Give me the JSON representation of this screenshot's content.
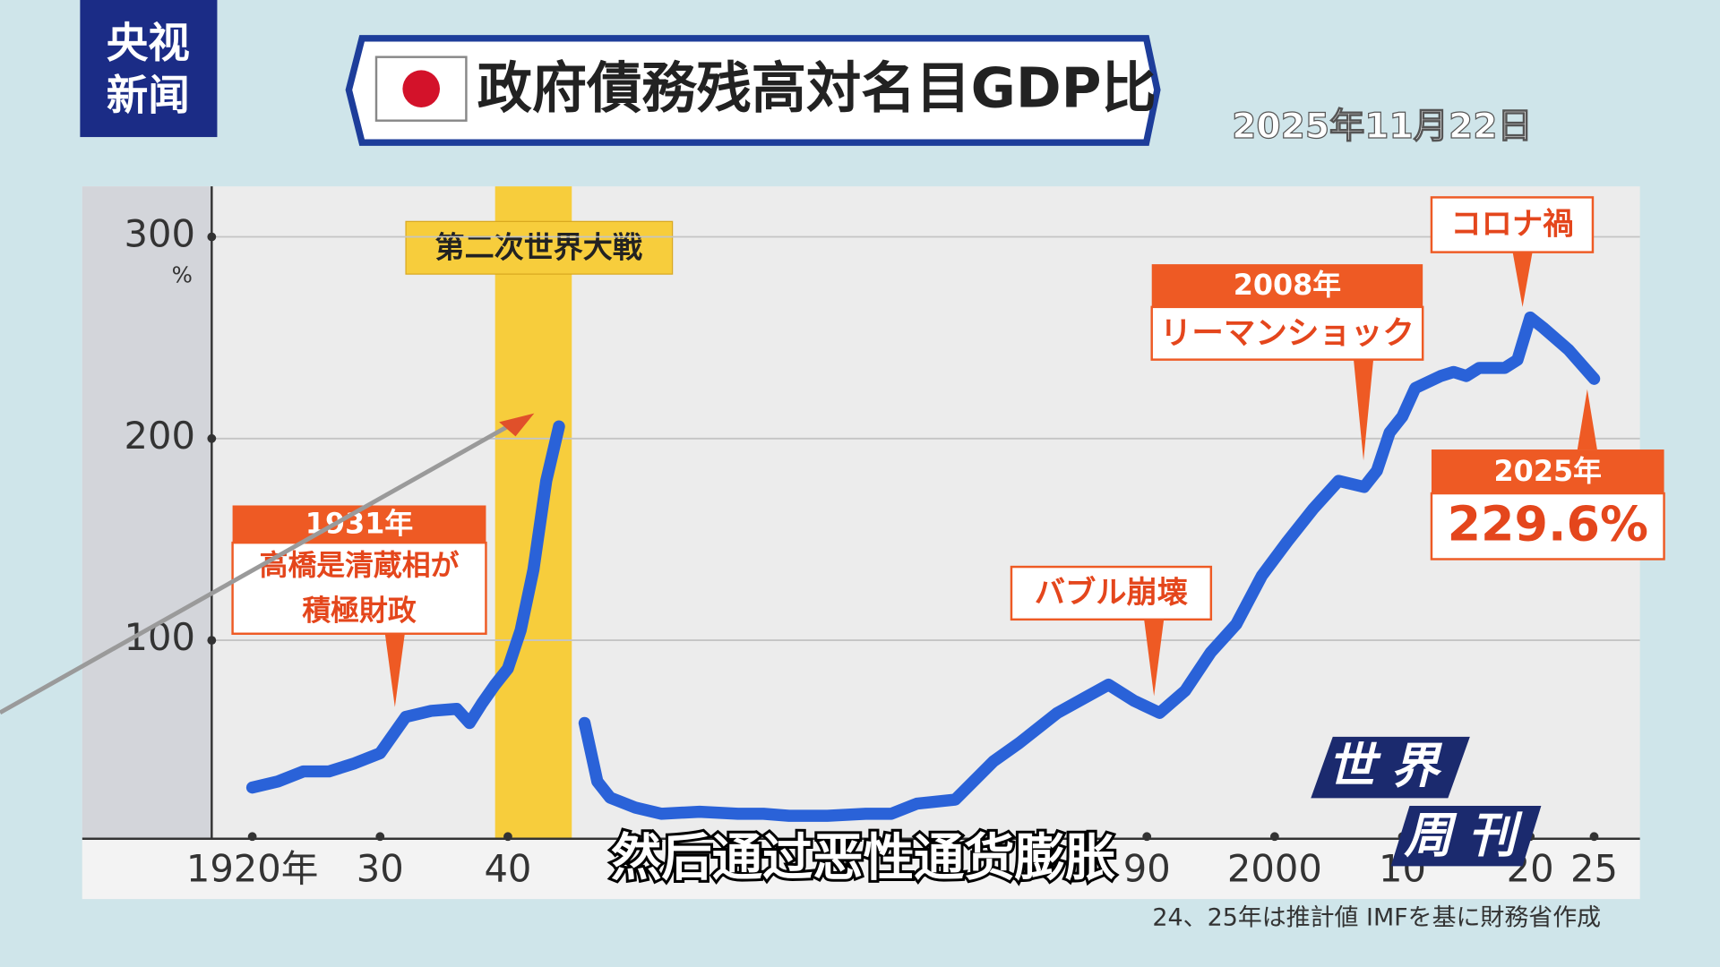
{
  "chart_data": {
    "type": "line",
    "title": "政府債務残高対名目GDP比",
    "date": "2025年11月22日",
    "channel": [
      "央视",
      "新闻"
    ],
    "program": [
      "世界",
      "周刊"
    ],
    "subtitle": "然后通过恶性通货膨胀",
    "y_unit": "%",
    "note": "24、25年は推計値 IMFを基に財務省作成",
    "highlight": {
      "label": "第二次世界大戦",
      "range": [
        1939,
        1945
      ]
    },
    "annotations": [
      {
        "title": "1931年",
        "text": [
          "高橋是清蔵相が",
          "積極財政"
        ]
      },
      {
        "text": [
          "バブル崩壊"
        ]
      },
      {
        "title": "2008年",
        "text": [
          "リーマンショック"
        ]
      },
      {
        "text": [
          "コロナ禍"
        ]
      },
      {
        "title": "2025年",
        "text": [
          "229.6%"
        ]
      }
    ],
    "x": [
      1920,
      1922,
      1924,
      1926,
      1928,
      1930,
      1932,
      1934,
      1936,
      1937,
      1938,
      1939,
      1940,
      1941,
      1942,
      1943,
      1944,
      1945,
      1946,
      1947,
      1948,
      1950,
      1952,
      1955,
      1958,
      1960,
      1962,
      1965,
      1968,
      1970,
      1972,
      1975,
      1978,
      1980,
      1983,
      1985,
      1987,
      1989,
      1991,
      1993,
      1995,
      1997,
      1999,
      2001,
      2003,
      2005,
      2007,
      2008,
      2009,
      2010,
      2011,
      2013,
      2014,
      2015,
      2016,
      2018,
      2019,
      2020,
      2021,
      2023,
      2025
    ],
    "series": [
      {
        "color": "#2a62d8",
        "values": [
          27,
          30,
          35,
          35,
          39,
          44,
          62,
          65,
          66,
          59,
          69,
          78,
          86,
          105,
          135,
          179,
          206,
          null,
          59,
          30,
          22,
          17,
          14,
          15,
          14,
          14,
          13,
          13,
          14,
          14,
          19,
          21,
          40,
          49,
          64,
          71,
          78,
          70,
          64,
          75,
          94,
          108,
          132,
          149,
          165,
          179,
          176,
          184,
          203,
          211,
          225,
          231,
          233,
          231,
          235,
          235,
          239,
          260,
          255,
          244,
          229.6
        ]
      }
    ],
    "xlim": [
      1911,
      2029
    ],
    "ylim": [
      0,
      325
    ],
    "yticks": [
      100,
      200,
      300
    ],
    "xticks": [
      {
        "value": 1920,
        "label": "1920年"
      },
      {
        "value": 1930,
        "label": "30"
      },
      {
        "value": 1940,
        "label": "40"
      },
      {
        "value": 1990,
        "label": "90"
      },
      2000,
      {
        "value": 2010,
        "label": "10"
      },
      {
        "value": 2020,
        "label": "20"
      },
      {
        "value": 2025,
        "label": "25"
      }
    ],
    "grid": true
  }
}
